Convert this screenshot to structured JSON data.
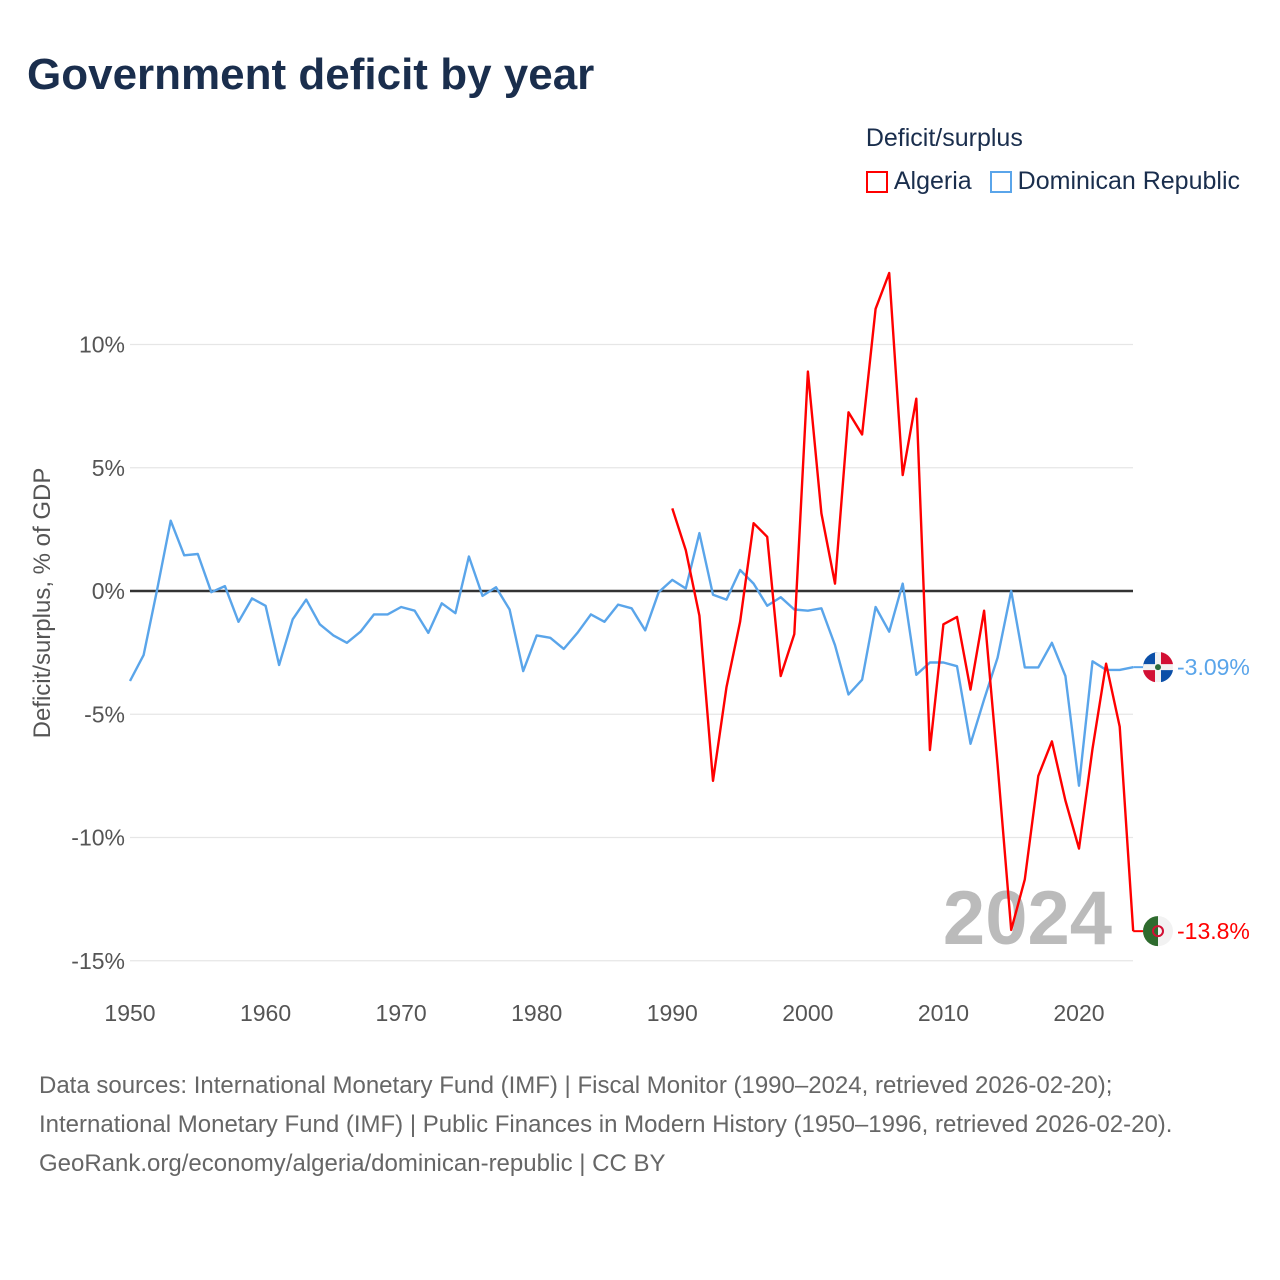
{
  "title": "Government deficit by year",
  "legend": {
    "title": "Deficit/surplus",
    "items": [
      {
        "name": "Algeria",
        "color": "#ff0000"
      },
      {
        "name": "Dominican Republic",
        "color": "#5aa5ea"
      }
    ]
  },
  "chart_data": {
    "type": "line",
    "title": "Government deficit by year",
    "xlabel": "",
    "ylabel": "Deficit/surplus, % of GDP",
    "xlim": [
      1950,
      2024
    ],
    "ylim": [
      -15,
      12.9
    ],
    "x_ticks": [
      1950,
      1960,
      1970,
      1980,
      1990,
      2000,
      2010,
      2020
    ],
    "x_tick_labels": [
      "1950",
      "1960",
      "1970",
      "1980",
      "1990",
      "2000",
      "2010",
      "2020"
    ],
    "y_ticks": [
      10,
      5,
      0,
      -5,
      -10,
      -15
    ],
    "y_tick_labels": [
      "10%",
      "5%",
      "0%",
      "-5%",
      "-10%",
      "-15%"
    ],
    "grid": true,
    "legend_position": "top-right",
    "year_label": "2024",
    "series": [
      {
        "name": "Dominican Republic",
        "color": "#5aa5ea",
        "end_label": "-3.09%",
        "start_year": 1950,
        "values": [
          -3.65,
          -2.6,
          0.05,
          2.85,
          1.45,
          1.5,
          -0.05,
          0.2,
          -1.25,
          -0.3,
          -0.6,
          -3.0,
          -1.15,
          -0.35,
          -1.35,
          -1.8,
          -2.1,
          -1.65,
          -0.95,
          -0.95,
          -0.65,
          -0.8,
          -1.7,
          -0.5,
          -0.9,
          1.4,
          -0.2,
          0.15,
          -0.75,
          -3.25,
          -1.8,
          -1.9,
          -2.35,
          -1.7,
          -0.95,
          -1.25,
          -0.55,
          -0.7,
          -1.6,
          -0.05,
          0.45,
          0.1,
          2.35,
          -0.15,
          -0.35,
          0.85,
          0.3,
          -0.6,
          -0.25,
          -0.75,
          -0.8,
          -0.7,
          -2.2,
          -4.2,
          -3.6,
          -0.65,
          -1.65,
          0.3,
          -3.4,
          -2.9,
          -2.9,
          -3.05,
          -6.2,
          -4.4,
          -2.7,
          0,
          -3.1,
          -3.1,
          -2.1,
          -3.45,
          -7.9,
          -2.85,
          -3.2,
          -3.2,
          -3.09
        ]
      },
      {
        "name": "Algeria",
        "color": "#ff0000",
        "end_label": "-13.8%",
        "start_year": 1990,
        "values": [
          3.35,
          1.65,
          -1.0,
          -7.7,
          -3.9,
          -1.25,
          2.75,
          2.2,
          -3.45,
          -1.75,
          8.9,
          3.15,
          0.3,
          7.25,
          6.35,
          11.45,
          12.9,
          4.7,
          7.8,
          -6.45,
          -1.35,
          -1.05,
          -4.0,
          -0.8,
          -7.05,
          -13.75,
          -11.7,
          -7.5,
          -6.1,
          -8.5,
          -10.45,
          -6.4,
          -2.95,
          -5.5,
          -13.8
        ]
      }
    ]
  },
  "footer": {
    "sources": "Data sources: International Monetary Fund (IMF) | Fiscal Monitor (1990–2024, retrieved 2026-02-20); International Monetary Fund (IMF) | Public Finances in Modern History (1950–1996, retrieved 2026-02-20).",
    "credit": "GeoRank.org/economy/algeria/dominican-republic | CC BY"
  }
}
